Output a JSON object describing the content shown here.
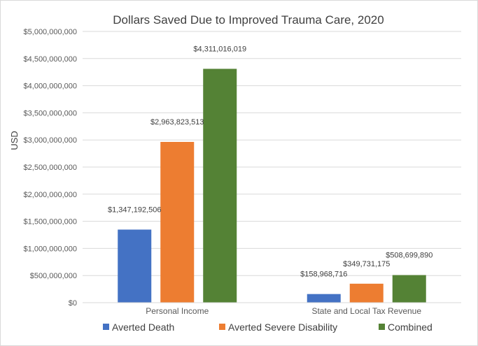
{
  "chart_data": {
    "type": "bar",
    "title": "Dollars Saved Due to Improved Trauma Care, 2020",
    "xlabel": "",
    "ylabel": "USD",
    "categories": [
      "Personal Income",
      "State and Local Tax Revenue"
    ],
    "series": [
      {
        "name": "Averted Death",
        "color": "#4472c4",
        "values": [
          1347192506,
          158968716
        ],
        "labels": [
          "$1,347,192,506",
          "$158,968,716"
        ]
      },
      {
        "name": "Averted Severe Disability",
        "color": "#ed7d31",
        "values": [
          2963823513,
          349731175
        ],
        "labels": [
          "$2,963,823,513",
          "$349,731,175"
        ]
      },
      {
        "name": "Combined",
        "color": "#548235",
        "values": [
          4311016019,
          508699890
        ],
        "labels": [
          "$4,311,016,019",
          "$508,699,890"
        ]
      }
    ],
    "ylim": [
      0,
      5000000000
    ],
    "ytick_values": [
      0,
      500000000,
      1000000000,
      1500000000,
      2000000000,
      2500000000,
      3000000000,
      3500000000,
      4000000000,
      4500000000,
      5000000000
    ],
    "ytick_labels": [
      "$0",
      "$500,000,000",
      "$1,000,000,000",
      "$1,500,000,000",
      "$2,000,000,000",
      "$2,500,000,000",
      "$3,000,000,000",
      "$3,500,000,000",
      "$4,000,000,000",
      "$4,500,000,000",
      "$5,000,000,000"
    ],
    "grid": true,
    "legend_position": "bottom"
  }
}
